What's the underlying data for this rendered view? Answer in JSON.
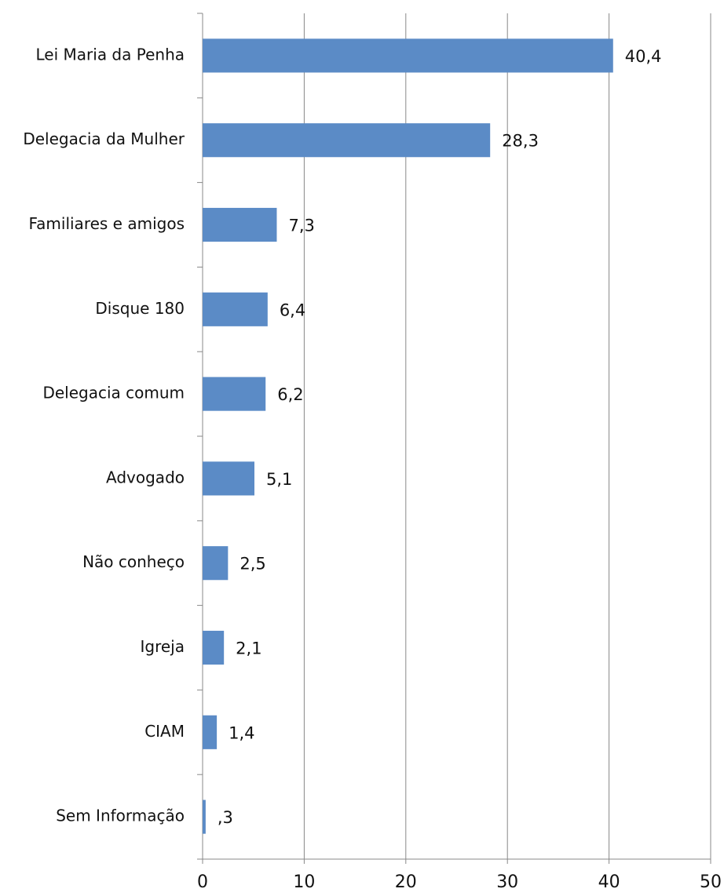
{
  "chart_data": {
    "type": "hbar",
    "categories": [
      "Lei Maria da Penha",
      "Delegacia da Mulher",
      "Familiares e amigos",
      "Disque 180",
      "Delegacia comum",
      "Advogado",
      "Não conheço",
      "Igreja",
      "CIAM",
      "Sem Informação"
    ],
    "values": [
      40.4,
      28.3,
      7.3,
      6.4,
      6.2,
      5.1,
      2.5,
      2.1,
      1.4,
      0.3
    ],
    "value_labels": [
      "40,4",
      "28,3",
      "7,3",
      "6,4",
      "6,2",
      "5,1",
      "2,5",
      "2,1",
      "1,4",
      ",3"
    ],
    "color": "#5b8bc6",
    "xlim": [
      0,
      50
    ],
    "xticks": [
      0,
      10,
      20,
      30,
      40,
      50
    ],
    "grid": true
  }
}
